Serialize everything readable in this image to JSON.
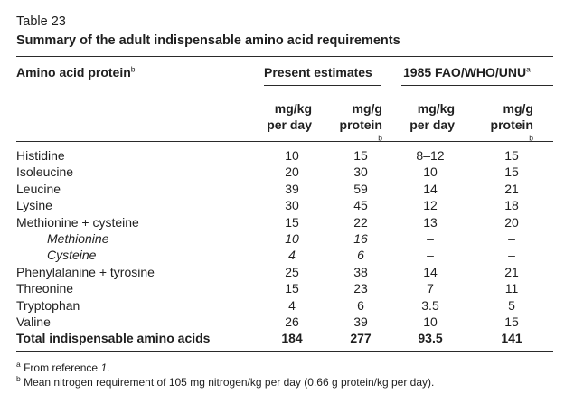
{
  "caption": "Table 23",
  "title": "Summary of the adult indispensable amino acid requirements",
  "headers": {
    "amino_acid": "Amino acid protein",
    "amino_acid_sup": "b",
    "present": "Present estimates",
    "fao": "1985 FAO/WHO/UNU",
    "fao_sup": "a",
    "cols": [
      {
        "line1": "mg/kg",
        "line2": "per day",
        "sup": ""
      },
      {
        "line1": "mg/g",
        "line2": "protein",
        "sup": "b"
      },
      {
        "line1": "mg/kg",
        "line2": "per day",
        "sup": ""
      },
      {
        "line1": "mg/g",
        "line2": "protein",
        "sup": "b"
      }
    ]
  },
  "rows": [
    {
      "name": "Histidine",
      "values": [
        "10",
        "15",
        "8–12",
        "15"
      ]
    },
    {
      "name": "Isoleucine",
      "values": [
        "20",
        "30",
        "10",
        "15"
      ]
    },
    {
      "name": "Leucine",
      "values": [
        "39",
        "59",
        "14",
        "21"
      ]
    },
    {
      "name": "Lysine",
      "values": [
        "30",
        "45",
        "12",
        "18"
      ]
    },
    {
      "name": "Methionine + cysteine",
      "values": [
        "15",
        "22",
        "13",
        "20"
      ]
    },
    {
      "name": "Methionine",
      "values": [
        "10",
        "16",
        "–",
        "–"
      ]
    },
    {
      "name": "Cysteine",
      "values": [
        "4",
        "6",
        "–",
        "–"
      ]
    },
    {
      "name": "Phenylalanine + tyrosine",
      "values": [
        "25",
        "38",
        "14",
        "21"
      ]
    },
    {
      "name": "Threonine",
      "values": [
        "15",
        "23",
        "7",
        "11"
      ]
    },
    {
      "name": "Tryptophan",
      "values": [
        "4",
        "6",
        "3.5",
        "5"
      ]
    },
    {
      "name": "Valine",
      "values": [
        "26",
        "39",
        "10",
        "15"
      ]
    },
    {
      "name": "Total indispensable amino acids",
      "values": [
        "184",
        "277",
        "93.5",
        "141"
      ]
    }
  ],
  "footnotes": {
    "a_mark": "a",
    "a_text": "From reference",
    "a_ref": "1",
    "a_end": ".",
    "b_mark": "b",
    "b_text": "Mean nitrogen requirement of 105 mg nitrogen/kg per day (0.66 g protein/kg per day)."
  }
}
